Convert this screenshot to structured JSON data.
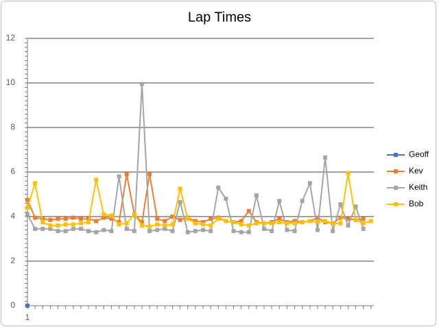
{
  "chart_data": {
    "type": "line",
    "title": "Lap Times",
    "categories": [
      "1",
      null,
      null,
      null,
      null,
      null,
      null,
      null,
      null,
      null,
      null,
      null,
      null,
      null,
      null,
      null,
      null,
      null,
      null,
      null,
      null,
      null,
      null,
      null,
      null,
      null,
      null,
      null,
      null,
      null,
      null,
      null,
      null,
      null,
      null,
      null,
      null,
      null,
      null,
      null,
      null,
      null,
      null,
      null,
      null,
      null
    ],
    "ylim": [
      0,
      12
    ],
    "yticks": [
      0,
      2,
      4,
      6,
      8,
      10,
      12
    ],
    "grid": true,
    "legend": "right",
    "series": [
      {
        "name": "Geoff",
        "color": "#4472c4",
        "values": [
          0,
          null,
          null,
          null,
          null,
          null,
          null,
          null,
          null,
          null,
          null,
          null,
          null,
          null,
          null,
          null,
          null,
          null,
          null,
          null,
          null,
          null,
          null,
          null,
          null,
          null,
          null,
          null,
          null,
          null,
          null,
          null,
          null,
          null,
          null,
          null,
          null,
          null,
          null,
          null,
          null,
          null,
          null,
          null,
          null,
          null
        ]
      },
      {
        "name": "Kev",
        "color": "#ed7d31",
        "values": [
          4.75,
          3.95,
          3.9,
          3.85,
          3.9,
          3.9,
          3.95,
          3.9,
          3.9,
          3.8,
          3.95,
          3.9,
          3.75,
          5.9,
          4.1,
          3.75,
          5.9,
          3.9,
          3.8,
          4.0,
          3.85,
          3.95,
          3.8,
          3.75,
          3.9,
          3.95,
          3.8,
          3.75,
          3.8,
          4.25,
          3.75,
          3.7,
          3.75,
          3.9,
          3.75,
          3.8,
          3.75,
          3.8,
          3.95,
          3.75,
          3.7,
          3.95,
          3.9,
          3.85,
          3.9,
          null
        ]
      },
      {
        "name": "Keith",
        "color": "#a5a5a5",
        "values": [
          4.1,
          3.45,
          3.45,
          3.45,
          3.35,
          3.35,
          3.45,
          3.45,
          3.35,
          3.3,
          3.4,
          3.35,
          5.8,
          3.45,
          3.35,
          9.95,
          3.35,
          3.4,
          3.45,
          3.35,
          4.65,
          3.3,
          3.35,
          3.4,
          3.35,
          5.3,
          4.8,
          3.35,
          3.3,
          3.3,
          4.95,
          3.45,
          3.35,
          4.7,
          3.4,
          3.35,
          4.7,
          5.5,
          3.4,
          6.65,
          3.35,
          4.55,
          3.6,
          4.45,
          3.45,
          null
        ]
      },
      {
        "name": "Bob",
        "color": "#ffc000",
        "values": [
          4.4,
          5.5,
          3.75,
          3.6,
          3.6,
          3.65,
          3.65,
          3.7,
          3.75,
          5.65,
          4.1,
          4.05,
          3.65,
          3.7,
          4.1,
          3.6,
          3.55,
          3.65,
          3.6,
          3.65,
          5.25,
          3.9,
          3.7,
          3.65,
          3.6,
          3.9,
          3.8,
          3.75,
          3.65,
          3.6,
          3.7,
          3.7,
          3.7,
          3.75,
          3.7,
          3.7,
          3.75,
          3.8,
          3.75,
          3.8,
          3.7,
          3.7,
          5.95,
          3.85,
          3.7,
          3.8
        ]
      }
    ]
  }
}
